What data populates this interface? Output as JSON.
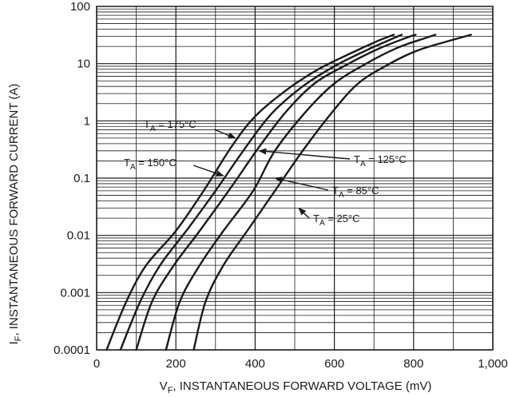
{
  "chart_data": {
    "type": "line",
    "xlabel": {
      "main": "V",
      "sub": "F",
      "rest": ", INSTANTANEOUS FORWARD VOLTAGE (mV)"
    },
    "ylabel": {
      "main": "I",
      "sub": "F",
      "rest": ", INSTANTANEOUS FORWARD CURRENT (A)"
    },
    "x_scale": "linear",
    "y_scale": "log",
    "xlim": [
      0,
      1000
    ],
    "ylim": [
      0.0001,
      100
    ],
    "x_ticks": [
      {
        "value": 0,
        "label": "0"
      },
      {
        "value": 200,
        "label": "200"
      },
      {
        "value": 400,
        "label": "400"
      },
      {
        "value": 600,
        "label": "600"
      },
      {
        "value": 800,
        "label": "800"
      },
      {
        "value": 1000,
        "label": "1,000"
      }
    ],
    "y_ticks": [
      {
        "value": 0.0001,
        "label": "0.0001"
      },
      {
        "value": 0.001,
        "label": "0.001"
      },
      {
        "value": 0.01,
        "label": "0.01"
      },
      {
        "value": 0.1,
        "label": "0.1"
      },
      {
        "value": 1,
        "label": "1"
      },
      {
        "value": 10,
        "label": "10"
      },
      {
        "value": 100,
        "label": "100"
      }
    ],
    "grid": true,
    "series": [
      {
        "name": "175°C",
        "label": {
          "main": "T",
          "sub": "A",
          "rest": " = 175°C"
        },
        "points": [
          [
            25,
            0.0001
          ],
          [
            75,
            0.0007
          ],
          [
            125,
            0.003
          ],
          [
            200,
            0.012
          ],
          [
            270,
            0.06
          ],
          [
            340,
            0.35
          ],
          [
            400,
            1.2
          ],
          [
            480,
            3.5
          ],
          [
            560,
            8
          ],
          [
            640,
            15
          ],
          [
            710,
            25
          ],
          [
            750,
            32
          ]
        ]
      },
      {
        "name": "150°C",
        "label": {
          "main": "T",
          "sub": "A",
          "rest": " = 150°C"
        },
        "points": [
          [
            60,
            0.0001
          ],
          [
            110,
            0.0007
          ],
          [
            160,
            0.003
          ],
          [
            230,
            0.013
          ],
          [
            300,
            0.06
          ],
          [
            370,
            0.3
          ],
          [
            440,
            1.3
          ],
          [
            520,
            4
          ],
          [
            600,
            9
          ],
          [
            680,
            17
          ],
          [
            740,
            26
          ],
          [
            770,
            32
          ]
        ]
      },
      {
        "name": "125°C",
        "label": {
          "main": "T",
          "sub": "A",
          "rest": " = 125°C"
        },
        "points": [
          [
            100,
            0.0001
          ],
          [
            140,
            0.0007
          ],
          [
            195,
            0.003
          ],
          [
            260,
            0.012
          ],
          [
            340,
            0.07
          ],
          [
            410,
            0.35
          ],
          [
            480,
            1.5
          ],
          [
            550,
            4.5
          ],
          [
            630,
            9.5
          ],
          [
            710,
            18
          ],
          [
            780,
            28
          ],
          [
            805,
            32
          ]
        ]
      },
      {
        "name": "85°C",
        "label": {
          "main": "T",
          "sub": "A",
          "rest": " = 85°C"
        },
        "points": [
          [
            175,
            0.0001
          ],
          [
            210,
            0.0007
          ],
          [
            260,
            0.003
          ],
          [
            320,
            0.012
          ],
          [
            395,
            0.06
          ],
          [
            450,
            0.3
          ],
          [
            530,
            1.5
          ],
          [
            600,
            4.5
          ],
          [
            680,
            10
          ],
          [
            760,
            19
          ],
          [
            830,
            28
          ],
          [
            855,
            32
          ]
        ]
      },
      {
        "name": "25°C",
        "label": {
          "main": "T",
          "sub": "A",
          "rest": " = 25°C"
        },
        "points": [
          [
            245,
            0.0001
          ],
          [
            275,
            0.0007
          ],
          [
            320,
            0.003
          ],
          [
            380,
            0.012
          ],
          [
            450,
            0.06
          ],
          [
            520,
            0.3
          ],
          [
            590,
            1.3
          ],
          [
            660,
            4.5
          ],
          [
            740,
            10
          ],
          [
            810,
            17
          ],
          [
            890,
            25
          ],
          [
            945,
            32
          ]
        ]
      }
    ],
    "annotations": [
      {
        "series": "175°C",
        "label_pos": "upper-left",
        "arrow_to": [
          350,
          0.5
        ]
      },
      {
        "series": "150°C",
        "label_pos": "left",
        "arrow_to": [
          320,
          0.11
        ]
      },
      {
        "series": "125°C",
        "label_pos": "right",
        "arrow_to": [
          410,
          0.3
        ]
      },
      {
        "series": "85°C",
        "label_pos": "right",
        "arrow_to": [
          450,
          0.1
        ]
      },
      {
        "series": "25°C",
        "label_pos": "right",
        "arrow_to": [
          510,
          0.03
        ]
      }
    ]
  }
}
